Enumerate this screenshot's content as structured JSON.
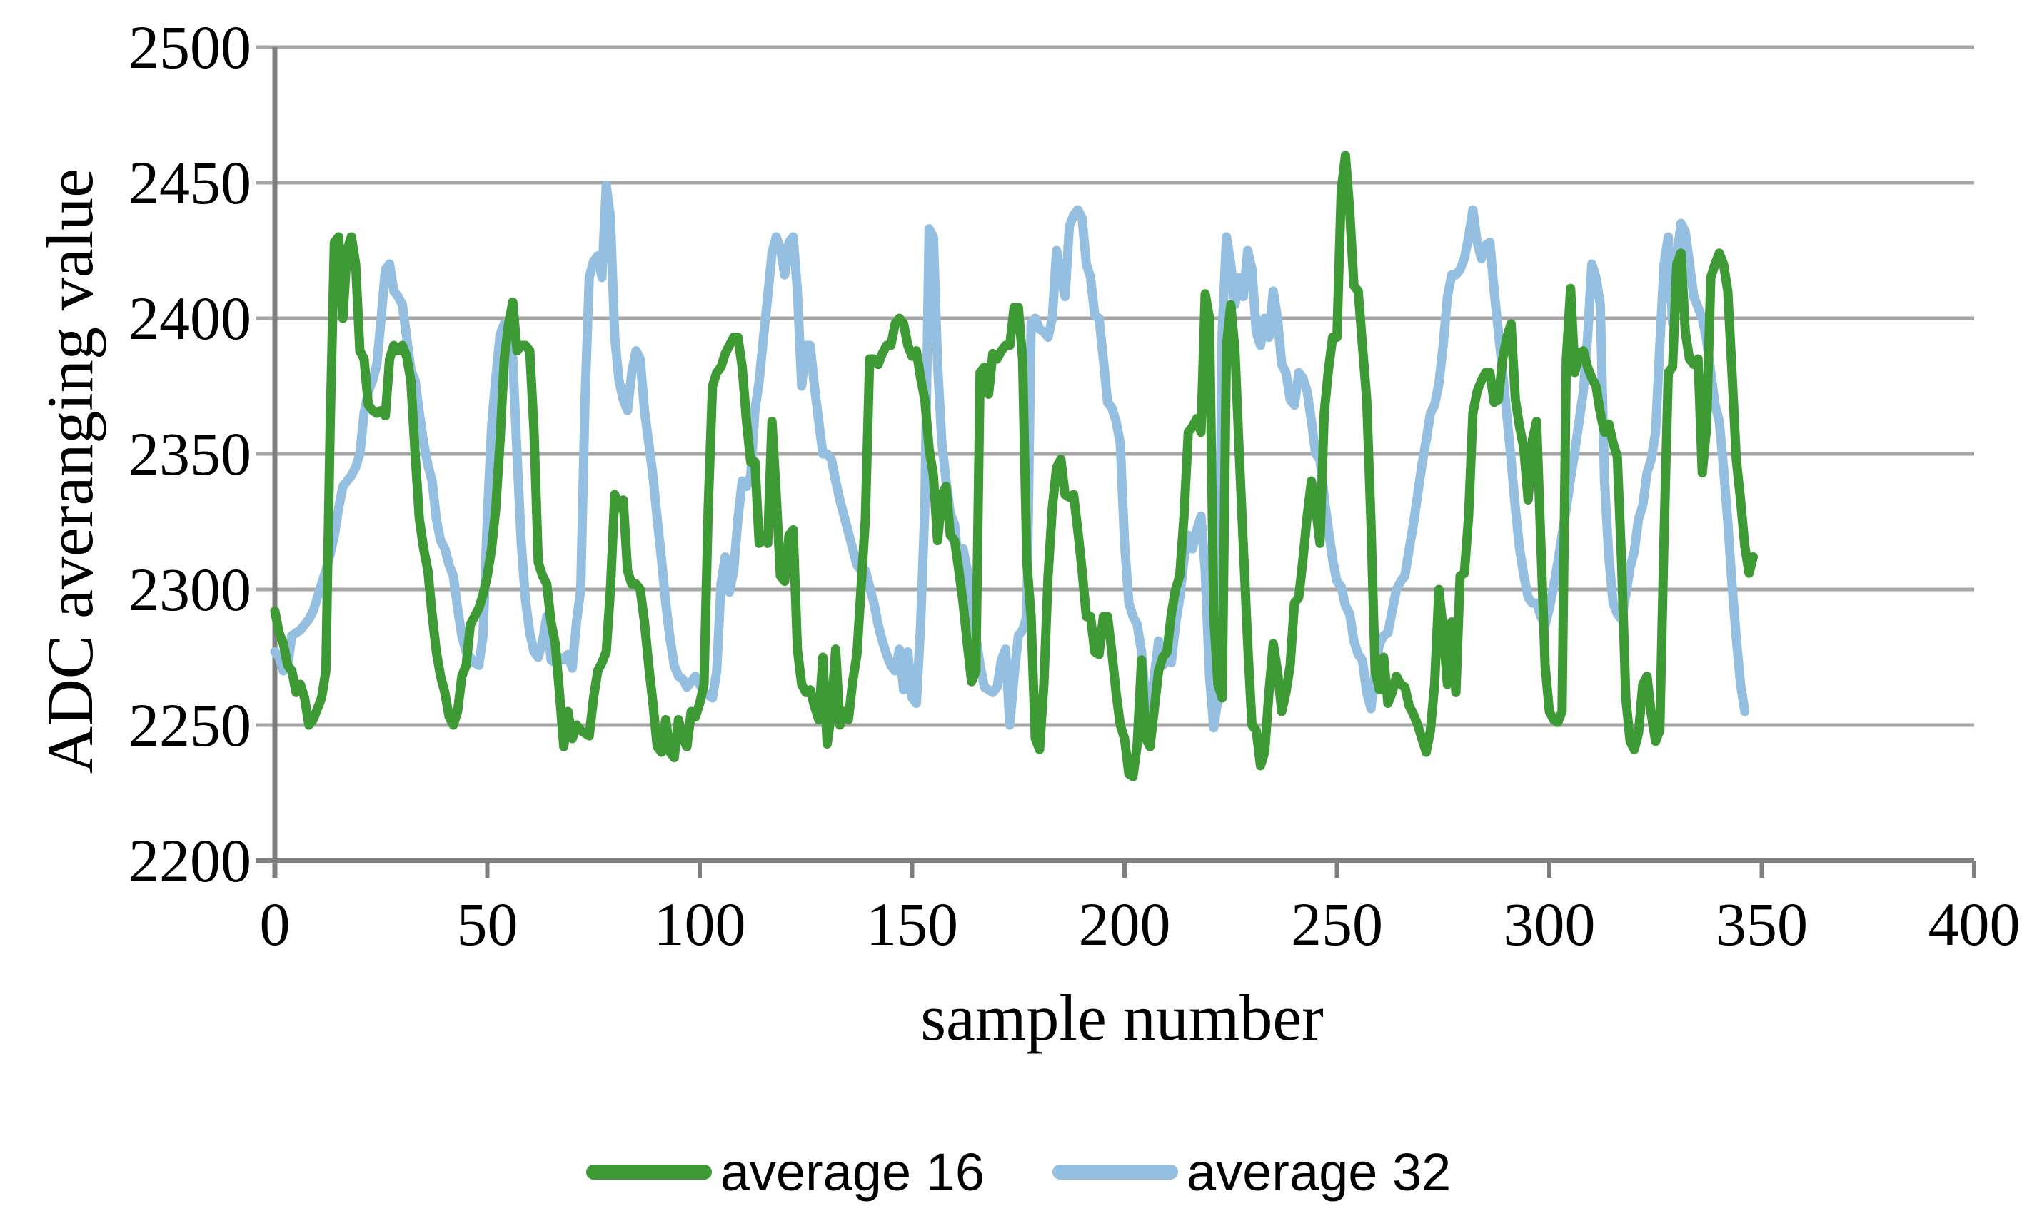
{
  "chart_data": {
    "type": "line",
    "title": "",
    "xlabel": "sample number",
    "ylabel": "ADC averanging value",
    "xlim": [
      0,
      400
    ],
    "ylim": [
      2200,
      2500
    ],
    "x_ticks": [
      0,
      50,
      100,
      150,
      200,
      250,
      300,
      350,
      400
    ],
    "y_ticks": [
      2200,
      2250,
      2300,
      2350,
      2400,
      2450,
      2500
    ],
    "grid": "horizontal-only",
    "legend_position": "bottom-center",
    "x_start": 0,
    "x_step": 1,
    "series": [
      {
        "name": "average 16",
        "color": "#3E9A35",
        "values": [
          2292,
          2284,
          2280,
          2272,
          2270,
          2262,
          2265,
          2260,
          2250,
          2252,
          2256,
          2260,
          2270,
          2360,
          2428,
          2430,
          2400,
          2425,
          2430,
          2420,
          2388,
          2385,
          2368,
          2366,
          2365,
          2366,
          2364,
          2385,
          2390,
          2388,
          2390,
          2386,
          2377,
          2350,
          2326,
          2315,
          2307,
          2291,
          2277,
          2268,
          2262,
          2253,
          2250,
          2255,
          2268,
          2272,
          2287,
          2290,
          2293,
          2298,
          2305,
          2315,
          2330,
          2355,
          2385,
          2398,
          2406,
          2388,
          2390,
          2390,
          2388,
          2358,
          2310,
          2305,
          2302,
          2288,
          2280,
          2262,
          2242,
          2255,
          2245,
          2250,
          2248,
          2247,
          2246,
          2260,
          2270,
          2273,
          2277,
          2300,
          2335,
          2330,
          2333,
          2307,
          2302,
          2302,
          2300,
          2288,
          2272,
          2258,
          2242,
          2240,
          2252,
          2240,
          2238,
          2252,
          2245,
          2242,
          2255,
          2253,
          2258,
          2265,
          2330,
          2375,
          2380,
          2382,
          2387,
          2390,
          2393,
          2393,
          2382,
          2362,
          2347,
          2347,
          2317,
          2320,
          2317,
          2362,
          2335,
          2305,
          2303,
          2320,
          2322,
          2278,
          2265,
          2262,
          2263,
          2257,
          2252,
          2275,
          2243,
          2255,
          2278,
          2250,
          2255,
          2252,
          2266,
          2276,
          2301,
          2326,
          2385,
          2385,
          2383,
          2387,
          2390,
          2390,
          2398,
          2400,
          2398,
          2390,
          2386,
          2388,
          2378,
          2370,
          2352,
          2342,
          2318,
          2335,
          2338,
          2320,
          2318,
          2307,
          2295,
          2280,
          2266,
          2270,
          2380,
          2382,
          2372,
          2387,
          2385,
          2388,
          2390,
          2390,
          2404,
          2404,
          2385,
          2310,
          2290,
          2245,
          2241,
          2265,
          2305,
          2330,
          2345,
          2348,
          2335,
          2334,
          2335,
          2322,
          2307,
          2290,
          2290,
          2277,
          2276,
          2290,
          2290,
          2277,
          2262,
          2250,
          2245,
          2232,
          2231,
          2243,
          2274,
          2245,
          2242,
          2256,
          2270,
          2275,
          2277,
          2291,
          2300,
          2305,
          2327,
          2358,
          2360,
          2363,
          2358,
          2409,
          2400,
          2290,
          2265,
          2260,
          2390,
          2405,
          2388,
          2350,
          2315,
          2280,
          2250,
          2248,
          2235,
          2240,
          2262,
          2280,
          2270,
          2255,
          2262,
          2272,
          2295,
          2297,
          2311,
          2327,
          2340,
          2330,
          2317,
          2365,
          2381,
          2393,
          2393,
          2447,
          2460,
          2440,
          2412,
          2410,
          2390,
          2370,
          2325,
          2270,
          2263,
          2275,
          2258,
          2262,
          2268,
          2265,
          2264,
          2257,
          2254,
          2250,
          2245,
          2240,
          2248,
          2265,
          2300,
          2285,
          2265,
          2288,
          2262,
          2305,
          2306,
          2327,
          2365,
          2373,
          2377,
          2380,
          2380,
          2369,
          2370,
          2385,
          2393,
          2398,
          2370,
          2360,
          2352,
          2333,
          2355,
          2362,
          2317,
          2272,
          2255,
          2252,
          2251,
          2255,
          2385,
          2411,
          2380,
          2387,
          2388,
          2382,
          2378,
          2375,
          2365,
          2358,
          2361,
          2354,
          2349,
          2310,
          2260,
          2244,
          2241,
          2247,
          2265,
          2268,
          2254,
          2244,
          2248,
          2320,
          2380,
          2382,
          2420,
          2424,
          2395,
          2385,
          2383,
          2385,
          2343,
          2360,
          2415,
          2420,
          2424,
          2420,
          2410,
          2380,
          2348,
          2333,
          2316,
          2306,
          2312
        ]
      },
      {
        "name": "average 32",
        "color": "#94BFE1",
        "values": [
          2277,
          2275,
          2270,
          2272,
          2283,
          2284,
          2285,
          2287,
          2289,
          2292,
          2297,
          2302,
          2307,
          2313,
          2320,
          2330,
          2338,
          2340,
          2342,
          2345,
          2350,
          2365,
          2373,
          2377,
          2383,
          2400,
          2418,
          2420,
          2410,
          2408,
          2405,
          2393,
          2381,
          2377,
          2365,
          2354,
          2346,
          2340,
          2326,
          2318,
          2315,
          2309,
          2305,
          2293,
          2283,
          2277,
          2275,
          2273,
          2272,
          2283,
          2326,
          2360,
          2378,
          2394,
          2398,
          2396,
          2385,
          2350,
          2317,
          2296,
          2284,
          2277,
          2275,
          2281,
          2290,
          2274,
          2273,
          2275,
          2274,
          2276,
          2271,
          2288,
          2300,
          2370,
          2415,
          2421,
          2423,
          2415,
          2449,
          2437,
          2393,
          2377,
          2370,
          2366,
          2380,
          2388,
          2385,
          2366,
          2354,
          2342,
          2326,
          2311,
          2295,
          2282,
          2272,
          2268,
          2267,
          2264,
          2266,
          2268,
          2265,
          2262,
          2261,
          2260,
          2270,
          2302,
          2312,
          2299,
          2307,
          2326,
          2340,
          2338,
          2342,
          2366,
          2377,
          2393,
          2408,
          2424,
          2430,
          2426,
          2416,
          2428,
          2430,
          2410,
          2375,
          2390,
          2390,
          2375,
          2362,
          2350,
          2350,
          2348,
          2340,
          2333,
          2327,
          2321,
          2315,
          2309,
          2307,
          2307,
          2301,
          2295,
          2287,
          2281,
          2276,
          2272,
          2270,
          2278,
          2263,
          2277,
          2260,
          2258,
          2287,
          2330,
          2433,
          2430,
          2383,
          2354,
          2340,
          2328,
          2324,
          2307,
          2315,
          2307,
          2295,
          2283,
          2272,
          2264,
          2263,
          2262,
          2264,
          2274,
          2278,
          2250,
          2268,
          2283,
          2285,
          2290,
          2398,
          2400,
          2396,
          2395,
          2393,
          2400,
          2425,
          2415,
          2408,
          2434,
          2438,
          2440,
          2437,
          2420,
          2415,
          2401,
          2400,
          2385,
          2369,
          2367,
          2362,
          2354,
          2317,
          2295,
          2290,
          2287,
          2277,
          2258,
          2256,
          2268,
          2281,
          2272,
          2274,
          2273,
          2287,
          2297,
          2311,
          2320,
          2315,
          2322,
          2327,
          2307,
          2268,
          2249,
          2260,
          2395,
          2430,
          2420,
          2405,
          2415,
          2408,
          2425,
          2418,
          2395,
          2390,
          2400,
          2393,
          2410,
          2400,
          2383,
          2380,
          2370,
          2368,
          2380,
          2378,
          2373,
          2362,
          2350,
          2348,
          2334,
          2322,
          2311,
          2303,
          2301,
          2294,
          2291,
          2281,
          2276,
          2274,
          2262,
          2256,
          2270,
          2280,
          2283,
          2284,
          2292,
          2300,
          2303,
          2305,
          2315,
          2324,
          2335,
          2346,
          2355,
          2365,
          2368,
          2376,
          2390,
          2408,
          2416,
          2416,
          2418,
          2422,
          2430,
          2440,
          2428,
          2422,
          2427,
          2428,
          2410,
          2395,
          2380,
          2364,
          2348,
          2330,
          2315,
          2305,
          2297,
          2295,
          2295,
          2290,
          2287,
          2293,
          2301,
          2310,
          2320,
          2330,
          2341,
          2351,
          2362,
          2373,
          2393,
          2420,
          2415,
          2405,
          2340,
          2312,
          2295,
          2291,
          2289,
          2298,
          2308,
          2314,
          2326,
          2331,
          2343,
          2348,
          2358,
          2390,
          2420,
          2430,
          2398,
          2422,
          2435,
          2432,
          2420,
          2408,
          2404,
          2400,
          2392,
          2380,
          2368,
          2362,
          2345,
          2325,
          2302,
          2282,
          2265,
          2255
        ]
      }
    ]
  },
  "colors": {
    "background": "#FFFFFF",
    "gridline": "#A6A6A6",
    "axis": "#7F7F7F",
    "text": "#000000",
    "series_green": "#3E9A35",
    "series_blue": "#94BFE1"
  },
  "legend": {
    "items": [
      {
        "label": "average 16"
      },
      {
        "label": "average 32"
      }
    ]
  }
}
